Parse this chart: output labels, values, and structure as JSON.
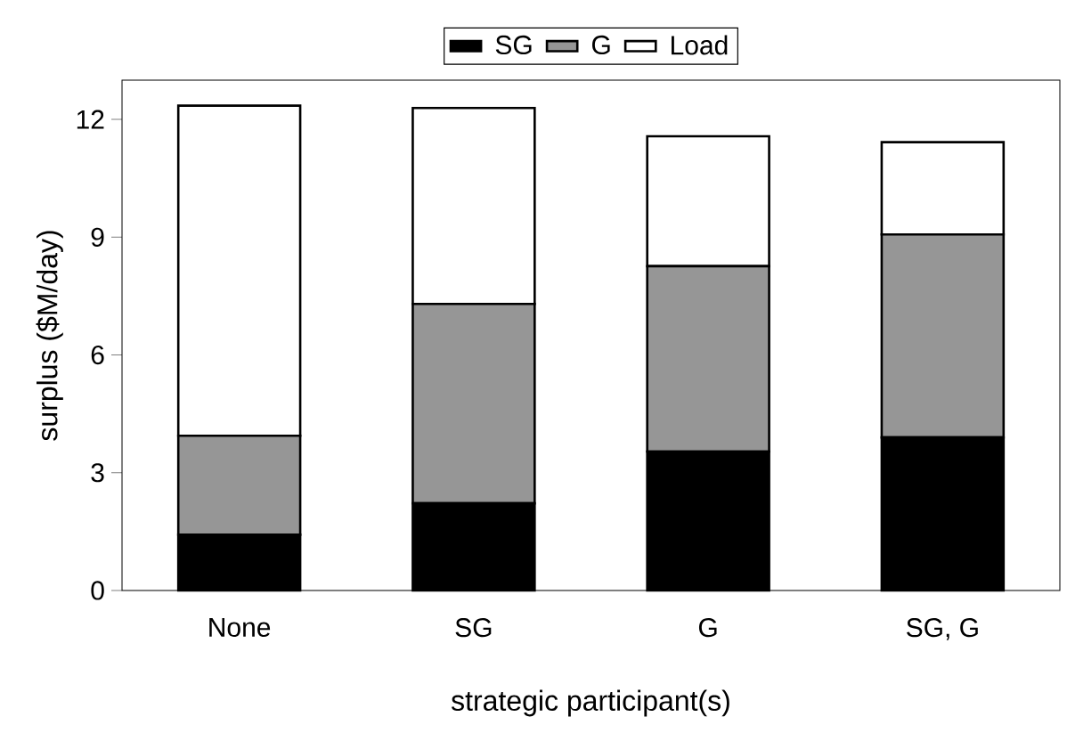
{
  "chart_data": {
    "type": "bar",
    "stacked": true,
    "xlabel": "strategic participant(s)",
    "ylabel": "surplus ($M/day)",
    "categories": [
      "None",
      "SG",
      "G",
      "SG, G"
    ],
    "series": [
      {
        "name": "SG",
        "color": "#000000",
        "values": [
          1.42,
          2.22,
          3.54,
          3.9
        ]
      },
      {
        "name": "G",
        "color": "#969696",
        "values": [
          2.52,
          5.08,
          4.72,
          5.17
        ]
      },
      {
        "name": "Load",
        "color": "#ffffff",
        "values": [
          8.41,
          4.99,
          3.31,
          2.35
        ]
      }
    ],
    "ylim": [
      0,
      13
    ],
    "yticks": [
      0,
      3,
      6,
      9,
      12
    ],
    "legend": "top",
    "grid": false
  }
}
